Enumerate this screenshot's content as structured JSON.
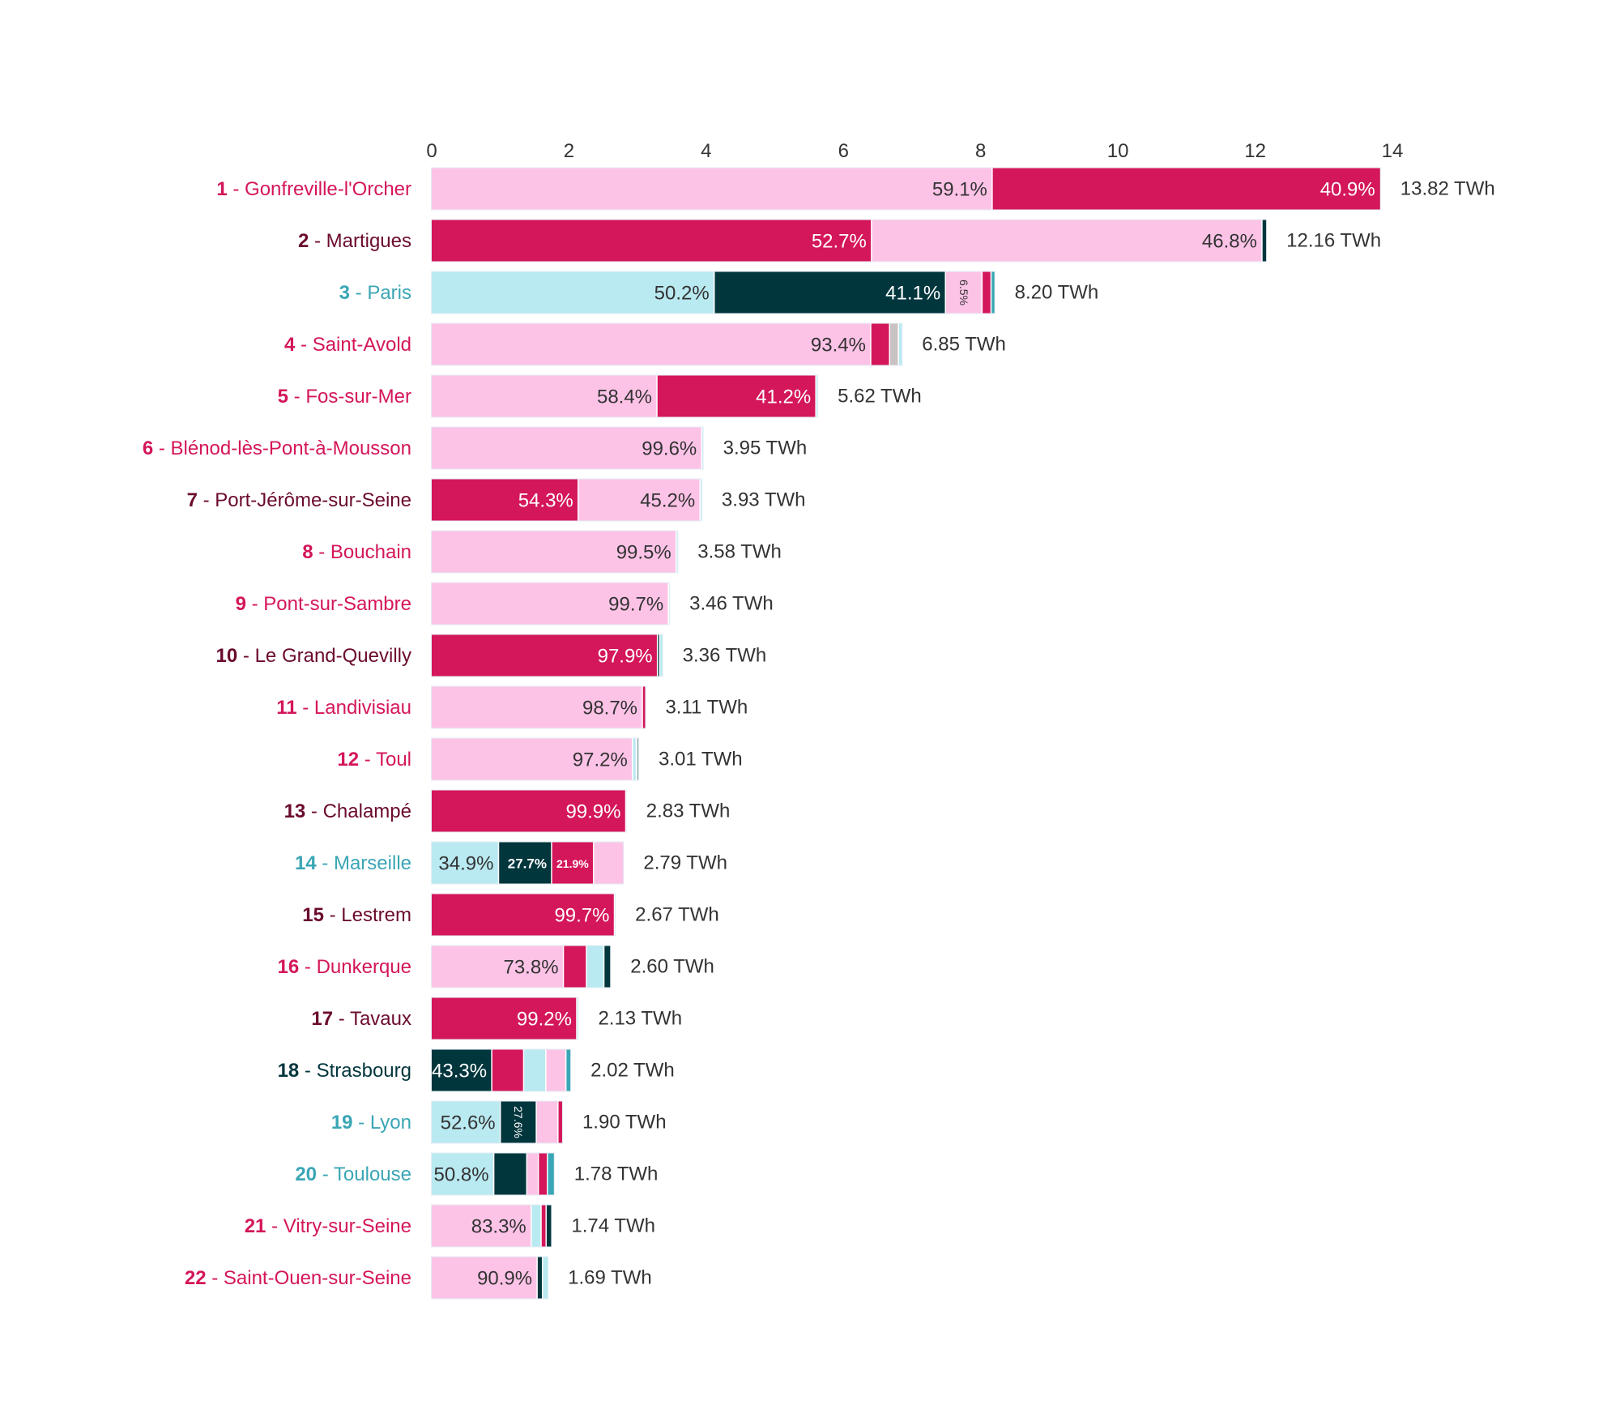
{
  "chart_data": {
    "type": "bar",
    "orientation": "horizontal",
    "stacked": true,
    "xlim": [
      0,
      14
    ],
    "xticks": [
      "0",
      "2",
      "4",
      "6",
      "8",
      "10",
      "12",
      "14"
    ],
    "unit_suffix": " TWh",
    "colors": {
      "pink": "#fdc3e7",
      "crimson": "#d4165a",
      "dark": "#02363d",
      "cyan": "#b9e9f1",
      "teal": "#3aa6b5",
      "gray": "#c8c3c2"
    },
    "label_colors": {
      "pink": "#d4165a",
      "crimson": "#6b0a2e",
      "cyan": "#3aa6b5",
      "dark": "#02363d"
    },
    "rows": [
      {
        "rank": "1",
        "name": " - Gonfreville-l'Orcher",
        "total": 13.82,
        "total_label": "13.82 TWh",
        "color": "pink",
        "segments": [
          {
            "c": "pink",
            "p": 59.1,
            "label": "59.1%"
          },
          {
            "c": "crimson",
            "p": 40.9,
            "label": "40.9%"
          }
        ]
      },
      {
        "rank": "2",
        "name": " - Martigues",
        "total": 12.16,
        "total_label": "12.16 TWh",
        "color": "crimson",
        "segments": [
          {
            "c": "crimson",
            "p": 52.7,
            "label": "52.7%"
          },
          {
            "c": "pink",
            "p": 46.8,
            "label": "46.8%"
          },
          {
            "c": "dark",
            "p": 0.5
          }
        ]
      },
      {
        "rank": "3",
        "name": " - Paris",
        "total": 8.2,
        "total_label": "8.20 TWh",
        "color": "cyan",
        "segments": [
          {
            "c": "cyan",
            "p": 50.2,
            "label": "50.2%"
          },
          {
            "c": "dark",
            "p": 41.1,
            "label": "41.1%"
          },
          {
            "c": "pink",
            "p": 6.5,
            "label": "6.5%",
            "label_style": "rot"
          },
          {
            "c": "crimson",
            "p": 1.6
          },
          {
            "c": "teal",
            "p": 0.6
          }
        ]
      },
      {
        "rank": "4",
        "name": " - Saint-Avold",
        "total": 6.85,
        "total_label": "6.85 TWh",
        "color": "pink",
        "segments": [
          {
            "c": "pink",
            "p": 93.4,
            "label": "93.4%"
          },
          {
            "c": "crimson",
            "p": 4.0
          },
          {
            "c": "gray",
            "p": 1.9
          },
          {
            "c": "cyan",
            "p": 0.7
          }
        ]
      },
      {
        "rank": "5",
        "name": " - Fos-sur-Mer",
        "total": 5.62,
        "total_label": "5.62 TWh",
        "color": "pink",
        "segments": [
          {
            "c": "pink",
            "p": 58.4,
            "label": "58.4%"
          },
          {
            "c": "crimson",
            "p": 41.2,
            "label": "41.2%"
          },
          {
            "c": "cyan",
            "p": 0.4
          }
        ]
      },
      {
        "rank": "6",
        "name": " - Blénod-lès-Pont-à-Mousson",
        "total": 3.95,
        "total_label": "3.95 TWh",
        "color": "pink",
        "segments": [
          {
            "c": "pink",
            "p": 99.6,
            "label": "99.6%"
          },
          {
            "c": "cyan",
            "p": 0.4
          }
        ]
      },
      {
        "rank": "7",
        "name": " - Port-Jérôme-sur-Seine",
        "total": 3.93,
        "total_label": "3.93 TWh",
        "color": "crimson",
        "segments": [
          {
            "c": "crimson",
            "p": 54.3,
            "label": "54.3%"
          },
          {
            "c": "pink",
            "p": 45.2,
            "label": "45.2%"
          },
          {
            "c": "cyan",
            "p": 0.5
          }
        ]
      },
      {
        "rank": "8",
        "name": " - Bouchain",
        "total": 3.58,
        "total_label": "3.58 TWh",
        "color": "pink",
        "segments": [
          {
            "c": "pink",
            "p": 99.5,
            "label": "99.5%"
          },
          {
            "c": "cyan",
            "p": 0.5
          }
        ]
      },
      {
        "rank": "9",
        "name": " - Pont-sur-Sambre",
        "total": 3.46,
        "total_label": "3.46 TWh",
        "color": "pink",
        "segments": [
          {
            "c": "pink",
            "p": 99.7,
            "label": "99.7%"
          },
          {
            "c": "cyan",
            "p": 0.3
          }
        ]
      },
      {
        "rank": "10",
        "name": " - Le Grand-Quevilly",
        "total": 3.36,
        "total_label": "3.36 TWh",
        "color": "crimson",
        "segments": [
          {
            "c": "crimson",
            "p": 97.9,
            "label": "97.9%"
          },
          {
            "c": "dark",
            "p": 1.0
          },
          {
            "c": "cyan",
            "p": 1.1
          }
        ]
      },
      {
        "rank": "11",
        "name": " - Landivisiau",
        "total": 3.11,
        "total_label": "3.11 TWh",
        "color": "pink",
        "segments": [
          {
            "c": "pink",
            "p": 98.7,
            "label": "98.7%"
          },
          {
            "c": "crimson",
            "p": 1.3
          }
        ]
      },
      {
        "rank": "12",
        "name": " - Toul",
        "total": 3.01,
        "total_label": "3.01 TWh",
        "color": "pink",
        "segments": [
          {
            "c": "pink",
            "p": 97.2,
            "label": "97.2%"
          },
          {
            "c": "cyan",
            "p": 1.8
          },
          {
            "c": "crimson",
            "p": 0.5
          },
          {
            "c": "dark",
            "p": 0.5
          }
        ]
      },
      {
        "rank": "13",
        "name": " - Chalampé",
        "total": 2.83,
        "total_label": "2.83 TWh",
        "color": "crimson",
        "segments": [
          {
            "c": "crimson",
            "p": 99.9,
            "label": "99.9%"
          },
          {
            "c": "cyan",
            "p": 0.1
          }
        ]
      },
      {
        "rank": "14",
        "name": " - Marseille",
        "total": 2.79,
        "total_label": "2.79 TWh",
        "color": "cyan",
        "segments": [
          {
            "c": "cyan",
            "p": 34.9,
            "label": "34.9%"
          },
          {
            "c": "dark",
            "p": 27.7,
            "label": "27.7%",
            "label_style": "small2"
          },
          {
            "c": "crimson",
            "p": 21.9,
            "label": "21.9%",
            "label_style": "small"
          },
          {
            "c": "pink",
            "p": 15.5
          }
        ]
      },
      {
        "rank": "15",
        "name": " - Lestrem",
        "total": 2.67,
        "total_label": "2.67 TWh",
        "color": "crimson",
        "segments": [
          {
            "c": "crimson",
            "p": 99.7,
            "label": "99.7%"
          },
          {
            "c": "cyan",
            "p": 0.3
          }
        ]
      },
      {
        "rank": "16",
        "name": " - Dunkerque",
        "total": 2.6,
        "total_label": "2.60 TWh",
        "color": "pink",
        "segments": [
          {
            "c": "pink",
            "p": 73.8,
            "label": "73.8%"
          },
          {
            "c": "crimson",
            "p": 12.9
          },
          {
            "c": "cyan",
            "p": 9.8
          },
          {
            "c": "dark",
            "p": 3.5
          }
        ]
      },
      {
        "rank": "17",
        "name": " - Tavaux",
        "total": 2.13,
        "total_label": "2.13 TWh",
        "color": "crimson",
        "segments": [
          {
            "c": "crimson",
            "p": 99.2,
            "label": "99.2%"
          },
          {
            "c": "cyan",
            "p": 0.8
          }
        ]
      },
      {
        "rank": "18",
        "name": " - Strasbourg",
        "total": 2.02,
        "total_label": "2.02 TWh",
        "color": "dark",
        "segments": [
          {
            "c": "dark",
            "p": 43.3,
            "label": "43.3%"
          },
          {
            "c": "crimson",
            "p": 23.0
          },
          {
            "c": "cyan",
            "p": 16.0
          },
          {
            "c": "pink",
            "p": 14.5
          },
          {
            "c": "teal",
            "p": 3.2
          }
        ]
      },
      {
        "rank": "19",
        "name": " - Lyon",
        "total": 1.9,
        "total_label": "1.90 TWh",
        "color": "cyan",
        "segments": [
          {
            "c": "cyan",
            "p": 52.6,
            "label": "52.6%"
          },
          {
            "c": "dark",
            "p": 27.6,
            "label": "27.6%",
            "label_style": "rot"
          },
          {
            "c": "pink",
            "p": 16.6
          },
          {
            "c": "crimson",
            "p": 3.2
          }
        ]
      },
      {
        "rank": "20",
        "name": " - Toulouse",
        "total": 1.78,
        "total_label": "1.78 TWh",
        "color": "cyan",
        "segments": [
          {
            "c": "cyan",
            "p": 50.8,
            "label": "50.8%"
          },
          {
            "c": "dark",
            "p": 27.0
          },
          {
            "c": "pink",
            "p": 9.5
          },
          {
            "c": "crimson",
            "p": 7.4
          },
          {
            "c": "teal",
            "p": 5.3
          }
        ]
      },
      {
        "rank": "21",
        "name": " - Vitry-sur-Seine",
        "total": 1.74,
        "total_label": "1.74 TWh",
        "color": "pink",
        "segments": [
          {
            "c": "pink",
            "p": 83.3,
            "label": "83.3%"
          },
          {
            "c": "cyan",
            "p": 8.3
          },
          {
            "c": "crimson",
            "p": 4.2
          },
          {
            "c": "dark",
            "p": 4.2
          }
        ]
      },
      {
        "rank": "22",
        "name": " - Saint-Ouen-sur-Seine",
        "total": 1.69,
        "total_label": "1.69 TWh",
        "color": "pink",
        "segments": [
          {
            "c": "pink",
            "p": 90.9,
            "label": "90.9%"
          },
          {
            "c": "dark",
            "p": 4.6
          },
          {
            "c": "cyan",
            "p": 4.5
          }
        ]
      }
    ]
  }
}
